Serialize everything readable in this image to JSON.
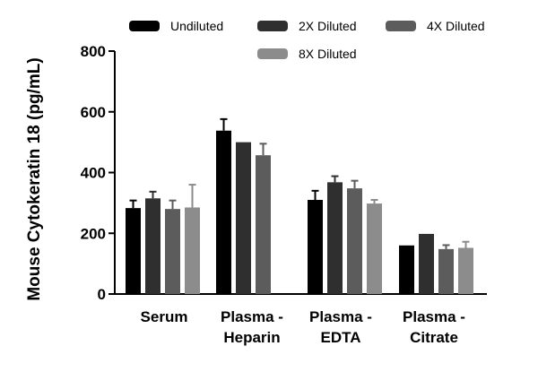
{
  "chart_data": {
    "type": "bar",
    "title": "",
    "xlabel": "",
    "ylabel": "Mouse Cytokeratin 18 (pg/mL)",
    "ylim": [
      0,
      800
    ],
    "yticks": [
      0,
      200,
      400,
      600,
      800
    ],
    "grid": false,
    "legend_position": "top",
    "categories": [
      [
        "Serum"
      ],
      [
        "Plasma -",
        "Heparin"
      ],
      [
        "Plasma -",
        "EDTA"
      ],
      [
        "Plasma -",
        "Citrate"
      ]
    ],
    "series": [
      {
        "name": "Undiluted",
        "color": "#000000",
        "values": [
          283,
          538,
          310,
          160
        ],
        "errors": [
          25,
          38,
          30,
          0
        ]
      },
      {
        "name": "2X Diluted",
        "color": "#2f2f2f",
        "values": [
          315,
          500,
          368,
          198
        ],
        "errors": [
          22,
          0,
          20,
          0
        ]
      },
      {
        "name": "4X Diluted",
        "color": "#5c5c5c",
        "values": [
          280,
          457,
          348,
          148
        ],
        "errors": [
          28,
          38,
          25,
          13
        ]
      },
      {
        "name": "8X Diluted",
        "color": "#8c8c8c",
        "values": [
          285,
          null,
          298,
          152
        ],
        "errors": [
          75,
          0,
          12,
          20
        ]
      }
    ]
  }
}
